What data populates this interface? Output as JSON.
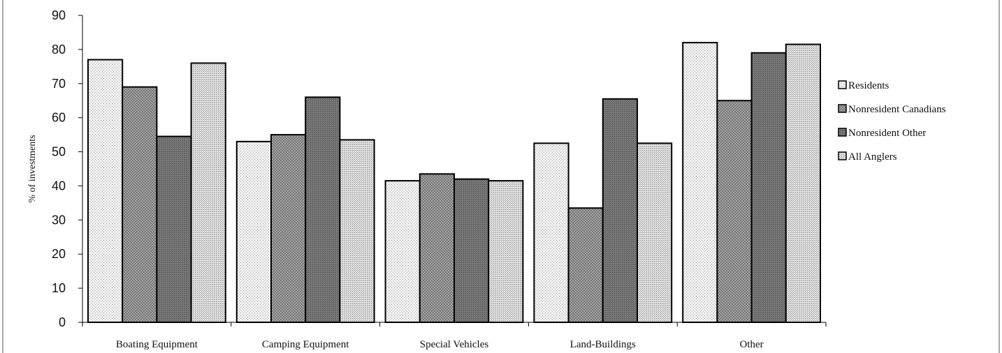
{
  "chart_data": {
    "type": "bar",
    "title": "",
    "xlabel": "",
    "ylabel": "% of investments",
    "ylim": [
      0,
      90
    ],
    "yticks": [
      0,
      10,
      20,
      30,
      40,
      50,
      60,
      70,
      80,
      90
    ],
    "categories": [
      "Boating Equipment",
      "Camping Equipment",
      "Special Vehicles",
      "Land-Buildings",
      "Other"
    ],
    "series": [
      {
        "name": "Residents",
        "values": [
          77,
          53,
          41.5,
          52.5,
          82
        ]
      },
      {
        "name": "Nonresident Canadians",
        "values": [
          69,
          55,
          43.5,
          33.5,
          65
        ]
      },
      {
        "name": "Nonresident Other",
        "values": [
          54.5,
          66,
          42,
          65.5,
          79
        ]
      },
      {
        "name": "All Anglers",
        "values": [
          76,
          53.5,
          41.5,
          52.5,
          81.5
        ]
      }
    ],
    "legend_position": "right",
    "grid": false
  },
  "colors": {
    "Residents": "#e9e9e9",
    "Nonresident Canadians": "#9a9a9a",
    "Nonresident Other": "#6f6f6f",
    "All Anglers": "#d4d4d4",
    "outline": "#000000"
  }
}
